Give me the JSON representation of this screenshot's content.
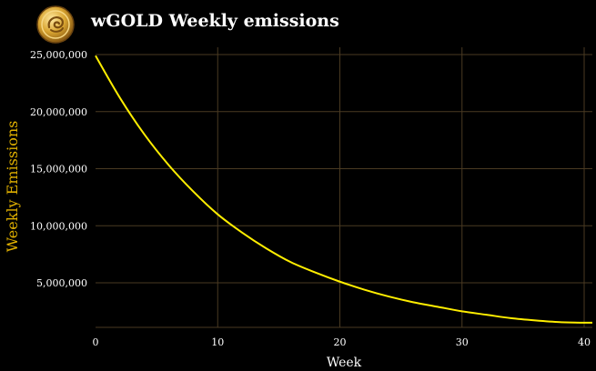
{
  "title": "wGOLD Weekly emissions",
  "colors": {
    "background": "#000000",
    "grid": "#4a3a22",
    "line": "#ffee00",
    "axis_title": "#e0b000",
    "text": "#ffffff"
  },
  "icons": {
    "coin": "gold-coin-logo"
  },
  "chart_data": {
    "type": "line",
    "title": "wGOLD Weekly emissions",
    "xlabel": "Week",
    "ylabel": "Weekly Emissions",
    "xlim": [
      0,
      40
    ],
    "ylim": [
      1000000,
      25000000
    ],
    "x_ticks": [
      0,
      10,
      20,
      30,
      40
    ],
    "y_ticks": [
      5000000,
      10000000,
      15000000,
      20000000,
      25000000
    ],
    "x_tick_labels": [
      "0",
      "10",
      "20",
      "30",
      "40"
    ],
    "y_tick_labels": [
      "5,000,000",
      "10,000,000",
      "15,000,000",
      "20,000,000",
      "25,000,000"
    ],
    "grid": true,
    "series": [
      {
        "x": [
          0,
          2,
          4,
          6,
          8,
          10,
          12,
          14,
          16,
          18,
          20,
          22,
          24,
          26,
          28,
          30,
          32,
          34,
          36,
          38,
          40
        ],
        "values": [
          24900000,
          21200000,
          18000000,
          15300000,
          13000000,
          11000000,
          9400000,
          8000000,
          6800000,
          5900000,
          5100000,
          4400000,
          3800000,
          3300000,
          2900000,
          2500000,
          2200000,
          1900000,
          1700000,
          1550000,
          1500000
        ]
      }
    ]
  }
}
